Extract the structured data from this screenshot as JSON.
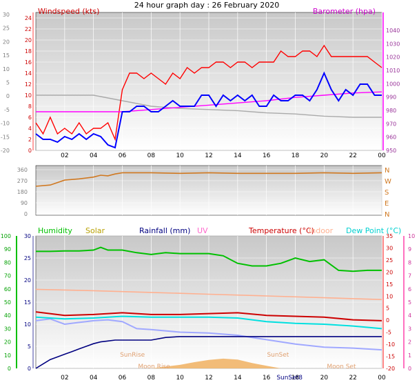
{
  "title": "24 hour graph day : 26 February 2020",
  "colors": {
    "windspeed": "#ff0000",
    "gust": "#0000ff",
    "barometer": "#ff00ff",
    "temp_bg": "#aaaaaa",
    "direction": "#d07820",
    "humidity": "#00c000",
    "solar": "#b8a000",
    "rainfall": "#000080",
    "uv": "#ff66cc",
    "temperature": "#cc0000",
    "indoor": "#ffb090",
    "dewpoint": "#00e0e0",
    "lavender": "#a0a8ff",
    "sun_fill": "#f0b060"
  },
  "chart_data": [
    {
      "type": "line",
      "panel": "wind",
      "title": "24 hour graph day : 26 February 2020",
      "ylabel_left": "Windspeed (kts)",
      "ylabel_right": "Barometer (hpa)",
      "x_ticks": [
        "02",
        "04",
        "06",
        "08",
        "10",
        "12",
        "14",
        "16",
        "18",
        "20",
        "22",
        "00"
      ],
      "y_left_red_ticks": [
        "24",
        "22",
        "20",
        "18",
        "16",
        "14",
        "12",
        "10",
        "8",
        "6",
        "4",
        "2",
        "0"
      ],
      "y_left_grey_ticks": [
        "30",
        "25",
        "20",
        "15",
        "10",
        "5",
        "0",
        "-5",
        "-10",
        "-15",
        "-20"
      ],
      "y_right_ticks": [
        "1040",
        "1030",
        "1020",
        "1010",
        "1000",
        "990",
        "980",
        "970",
        "960",
        "950"
      ],
      "x_range": [
        0,
        24
      ],
      "y_range": [
        0,
        25
      ],
      "series": [
        {
          "name": "Windspeed (kts)",
          "x": [
            0,
            0.5,
            1,
            1.5,
            2,
            2.5,
            3,
            3.5,
            4,
            4.5,
            5,
            5.5,
            6,
            6.5,
            7,
            7.5,
            8,
            8.5,
            9,
            9.5,
            10,
            10.5,
            11,
            11.5,
            12,
            12.5,
            13,
            13.5,
            14,
            14.5,
            15,
            15.5,
            16,
            16.5,
            17,
            17.5,
            18,
            18.5,
            19,
            19.5,
            20,
            20.5,
            21,
            21.5,
            22,
            22.5,
            23,
            23.5,
            24
          ],
          "values": [
            5,
            3,
            6,
            3,
            4,
            3,
            5,
            3,
            4,
            4,
            5,
            2,
            11,
            14,
            14,
            13,
            14,
            13,
            12,
            14,
            13,
            15,
            14,
            15,
            15,
            16,
            16,
            15,
            16,
            16,
            15,
            16,
            16,
            16,
            18,
            17,
            17,
            18,
            18,
            17,
            19,
            17,
            17,
            17,
            17,
            17,
            17,
            16,
            15
          ]
        },
        {
          "name": "Gust",
          "x": [
            0,
            0.5,
            1,
            1.5,
            2,
            2.5,
            3,
            3.5,
            4,
            4.5,
            5,
            5.5,
            6,
            6.5,
            7,
            7.5,
            8,
            8.5,
            9,
            9.5,
            10,
            10.5,
            11,
            11.5,
            12,
            12.5,
            13,
            13.5,
            14,
            14.5,
            15,
            15.5,
            16,
            16.5,
            17,
            17.5,
            18,
            18.5,
            19,
            19.5,
            20,
            20.5,
            21,
            21.5,
            22,
            22.5,
            23,
            23.5,
            24
          ],
          "values": [
            3,
            2,
            2,
            1.5,
            2.5,
            2,
            3,
            2,
            3,
            2.5,
            1,
            0.5,
            7,
            7,
            8,
            8,
            7,
            7,
            8,
            9,
            8,
            8,
            8,
            10,
            10,
            8,
            10,
            9,
            10,
            9,
            10,
            8,
            8,
            10,
            9,
            9,
            10,
            10,
            9,
            11,
            14,
            11,
            9,
            11,
            10,
            12,
            12,
            10,
            10
          ]
        },
        {
          "name": "Barometer (hpa)",
          "x": [
            0,
            2,
            4,
            6,
            8,
            10,
            12,
            14,
            16,
            18,
            20,
            22,
            24
          ],
          "values": [
            7,
            7,
            7,
            7,
            7.4,
            7.8,
            8.2,
            8.6,
            9,
            9.6,
            10,
            10.4,
            10.6
          ]
        },
        {
          "name": "Temperature (grey)",
          "x": [
            0,
            2,
            4,
            6,
            8,
            10,
            12,
            14,
            16,
            18,
            20,
            22,
            24
          ],
          "values": [
            10,
            10,
            10,
            9,
            8,
            7.6,
            7.4,
            7.2,
            6.8,
            6.6,
            6.2,
            6.0,
            6.0
          ]
        }
      ]
    },
    {
      "type": "line",
      "panel": "direction",
      "y_ticks": [
        "360",
        "270",
        "180",
        "90",
        "0"
      ],
      "compass": [
        "N",
        "W",
        "S",
        "E",
        "N"
      ],
      "x_range": [
        0,
        24
      ],
      "y_range": [
        0,
        360
      ],
      "series": [
        {
          "name": "Wind direction",
          "x": [
            0,
            1,
            2,
            3,
            4,
            4.5,
            5,
            5.5,
            6,
            8,
            10,
            12,
            14,
            16,
            18,
            20,
            22,
            24
          ],
          "values": [
            225,
            235,
            275,
            285,
            300,
            315,
            310,
            325,
            335,
            335,
            330,
            335,
            330,
            330,
            330,
            335,
            330,
            335
          ]
        }
      ]
    },
    {
      "type": "line",
      "panel": "climate",
      "legend": [
        "Humidity",
        "Solar",
        "Rainfall (mm)",
        "UV",
        "Temperature (°C)",
        "Indoor",
        "Dew Point (°C)"
      ],
      "y_left_hum_ticks": [
        "100",
        "90",
        "80",
        "70",
        "60",
        "50",
        "40",
        "30",
        "20",
        "10",
        "0"
      ],
      "y_left_rain_ticks": [
        "30",
        "25",
        "20",
        "15",
        "10",
        "5",
        "0"
      ],
      "y_right_temp_ticks": [
        "35",
        "30",
        "25",
        "20",
        "15",
        "10",
        "5",
        "0",
        "-5",
        "-10",
        "-15",
        "-20"
      ],
      "y_right_uv_ticks": [
        "10",
        "9",
        "8",
        "7",
        "6",
        "5",
        "4",
        "3",
        "2",
        "1",
        "0"
      ],
      "x_ticks": [
        "02",
        "04",
        "06",
        "08",
        "10",
        "12",
        "14",
        "16",
        "18",
        "20",
        "22",
        "00"
      ],
      "annotations": [
        "SunRise",
        "SunSet",
        "Moon Rise",
        "Moon Set",
        "SunSet8"
      ],
      "x_range": [
        0,
        24
      ],
      "y_range": [
        0,
        30
      ],
      "series": [
        {
          "name": "Humidity",
          "x": [
            0,
            1,
            2,
            3,
            4,
            4.5,
            5,
            6,
            7,
            8,
            9,
            10,
            11,
            12,
            13,
            14,
            15,
            16,
            17,
            18,
            19,
            20,
            21,
            22,
            23,
            24
          ],
          "values": [
            26.5,
            26.5,
            26.6,
            26.6,
            26.8,
            27.4,
            26.8,
            26.8,
            26.2,
            25.8,
            26.2,
            26,
            26,
            26,
            25.5,
            23.8,
            23.2,
            23.2,
            23.8,
            25.0,
            24.2,
            24.6,
            22.2,
            22.0,
            22.2,
            22.2
          ]
        },
        {
          "name": "Indoor",
          "x": [
            0,
            4,
            8,
            12,
            16,
            20,
            24
          ],
          "values": [
            17.9,
            17.6,
            17.2,
            16.8,
            16.4,
            16.0,
            15.6
          ]
        },
        {
          "name": "Temperature (°C)",
          "x": [
            0,
            2,
            4,
            6,
            8,
            10,
            12,
            14,
            16,
            18,
            20,
            22,
            24
          ],
          "values": [
            12.8,
            12.0,
            12.2,
            12.6,
            12.2,
            12.2,
            12.4,
            12.6,
            12.0,
            11.8,
            11.6,
            11.0,
            10.8
          ]
        },
        {
          "name": "Dew Point (°C)",
          "x": [
            0,
            2,
            4,
            6,
            8,
            10,
            12,
            14,
            16,
            18,
            20,
            22,
            24
          ],
          "values": [
            11.6,
            11.2,
            11.4,
            11.8,
            11.6,
            11.6,
            11.6,
            11.4,
            10.6,
            10.2,
            10.0,
            9.6,
            9.0
          ]
        },
        {
          "name": "Lavender",
          "x": [
            0,
            1,
            2,
            3,
            4,
            5,
            6,
            7,
            8,
            10,
            12,
            14,
            16,
            18,
            20,
            22,
            24
          ],
          "values": [
            10.8,
            11.2,
            10.0,
            10.4,
            10.8,
            11.0,
            10.6,
            9.0,
            8.8,
            8.2,
            8.0,
            7.5,
            6.5,
            5.5,
            4.8,
            4.6,
            4.2
          ]
        },
        {
          "name": "Rainfall (mm)",
          "x": [
            0,
            0.5,
            1,
            1.5,
            2,
            2.5,
            3,
            3.5,
            4,
            4.5,
            5,
            5.5,
            6,
            8,
            9,
            10,
            12,
            14,
            16,
            18,
            20,
            22,
            24
          ],
          "values": [
            0,
            1.0,
            2.0,
            2.6,
            3.2,
            3.8,
            4.4,
            5.0,
            5.6,
            6.0,
            6.2,
            6.4,
            6.4,
            6.4,
            7.0,
            7.2,
            7.2,
            7.2,
            7.2,
            7.2,
            7.2,
            7.2,
            7.2
          ]
        },
        {
          "name": "Solar",
          "x": [
            8,
            9,
            10,
            11,
            12,
            13,
            14,
            15,
            16,
            17
          ],
          "values": [
            0,
            0.4,
            0.8,
            1.4,
            1.9,
            2.2,
            2.0,
            1.2,
            0.6,
            0
          ]
        }
      ]
    }
  ]
}
